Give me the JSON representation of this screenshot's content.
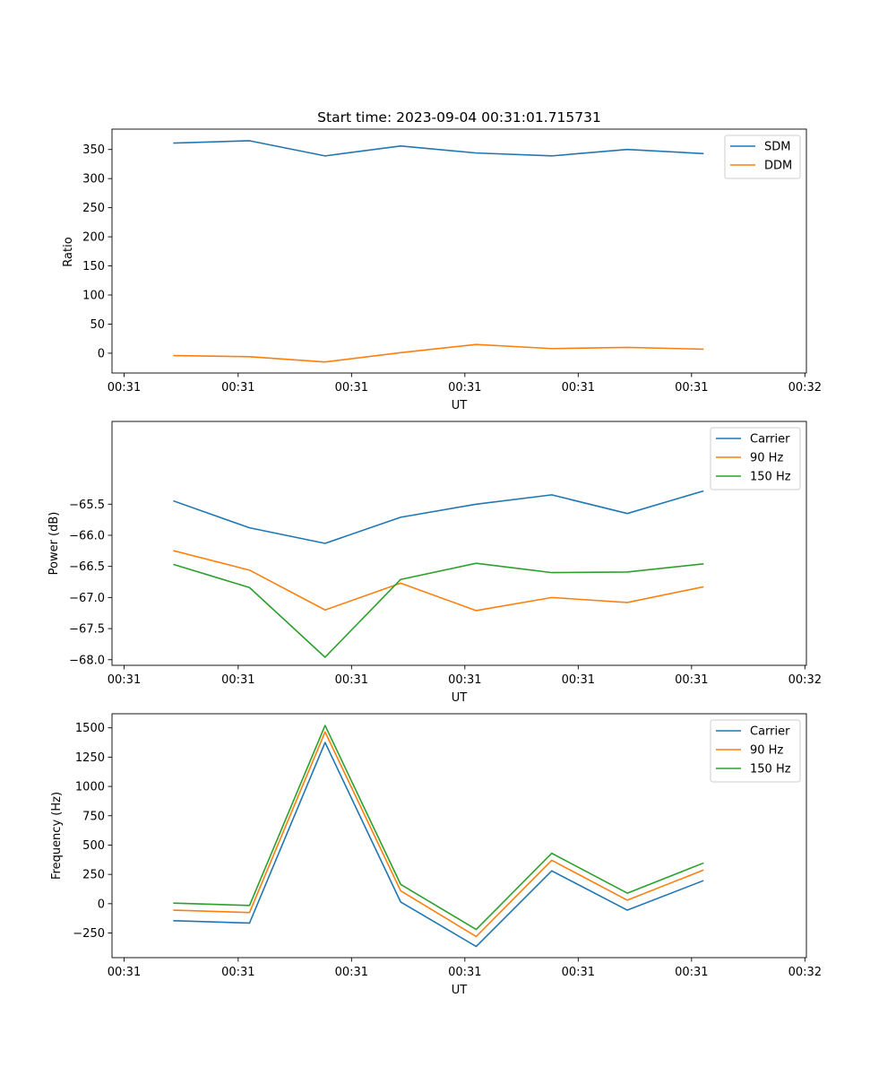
{
  "chart_data": [
    {
      "type": "line",
      "title": "Start time: 2023-09-04 00:31:01.715731",
      "xlabel": "UT",
      "ylabel": "Ratio",
      "x": [
        1,
        2,
        3,
        4,
        5,
        6,
        7,
        8
      ],
      "xlim": [
        0.18,
        9.37
      ],
      "ylim": [
        -34,
        385
      ],
      "xticks": [
        0.34,
        1.85,
        3.35,
        4.85,
        6.35,
        7.85,
        9.35
      ],
      "xticklabels": [
        "00:31",
        "00:31",
        "00:31",
        "00:31",
        "00:31",
        "00:31",
        "00:32"
      ],
      "yticks": [
        0,
        50,
        100,
        150,
        200,
        250,
        300,
        350
      ],
      "legend_position": "top-right",
      "series": [
        {
          "name": "SDM",
          "color": "#1f77b4",
          "values": [
            361,
            365,
            339,
            356,
            344,
            339,
            350,
            343
          ]
        },
        {
          "name": "DDM",
          "color": "#ff7f0e",
          "values": [
            -4,
            -6,
            -15,
            1,
            15,
            8,
            10,
            7
          ]
        }
      ]
    },
    {
      "type": "line",
      "title": "",
      "xlabel": "UT",
      "ylabel": "Power (dB)",
      "x": [
        1,
        2,
        3,
        4,
        5,
        6,
        7,
        8
      ],
      "xlim": [
        0.18,
        9.37
      ],
      "ylim": [
        -68.09,
        -64.17
      ],
      "xticks": [
        0.34,
        1.85,
        3.35,
        4.85,
        6.35,
        7.85,
        9.35
      ],
      "xticklabels": [
        "00:31",
        "00:31",
        "00:31",
        "00:31",
        "00:31",
        "00:31",
        "00:32"
      ],
      "yticks": [
        -68.0,
        -67.5,
        -67.0,
        -66.5,
        -66.0,
        -65.5
      ],
      "yticklabels": [
        "−68.0",
        "−67.5",
        "−67.0",
        "−66.5",
        "−66.0",
        "−65.5"
      ],
      "legend_position": "top-right",
      "series": [
        {
          "name": "Carrier",
          "color": "#1f77b4",
          "values": [
            -65.45,
            -65.88,
            -66.13,
            -65.71,
            -65.5,
            -65.35,
            -65.65,
            -65.29
          ]
        },
        {
          "name": "90 Hz",
          "color": "#ff7f0e",
          "values": [
            -66.25,
            -66.56,
            -67.2,
            -66.77,
            -67.21,
            -67.0,
            -67.08,
            -66.83
          ]
        },
        {
          "name": "150 Hz",
          "color": "#2ca02c",
          "values": [
            -66.47,
            -66.84,
            -67.96,
            -66.71,
            -66.45,
            -66.6,
            -66.59,
            -66.46
          ]
        }
      ]
    },
    {
      "type": "line",
      "title": "",
      "xlabel": "UT",
      "ylabel": "Frequency (Hz)",
      "x": [
        1,
        2,
        3,
        4,
        5,
        6,
        7,
        8
      ],
      "xlim": [
        0.18,
        9.37
      ],
      "ylim": [
        -460,
        1620
      ],
      "xticks": [
        0.34,
        1.85,
        3.35,
        4.85,
        6.35,
        7.85,
        9.35
      ],
      "xticklabels": [
        "00:31",
        "00:31",
        "00:31",
        "00:31",
        "00:31",
        "00:31",
        "00:32"
      ],
      "yticks": [
        -250,
        0,
        250,
        500,
        750,
        1000,
        1250,
        1500
      ],
      "yticklabels": [
        "−250",
        "0",
        "250",
        "500",
        "750",
        "1000",
        "1250",
        "1500"
      ],
      "legend_position": "top-right",
      "series": [
        {
          "name": "Carrier",
          "color": "#1f77b4",
          "values": [
            -145,
            -165,
            1375,
            15,
            -365,
            280,
            -55,
            195
          ]
        },
        {
          "name": "90 Hz",
          "color": "#ff7f0e",
          "values": [
            -55,
            -75,
            1465,
            110,
            -280,
            370,
            30,
            285
          ]
        },
        {
          "name": "150 Hz",
          "color": "#2ca02c",
          "values": [
            5,
            -15,
            1520,
            165,
            -220,
            430,
            90,
            345
          ]
        }
      ]
    }
  ]
}
